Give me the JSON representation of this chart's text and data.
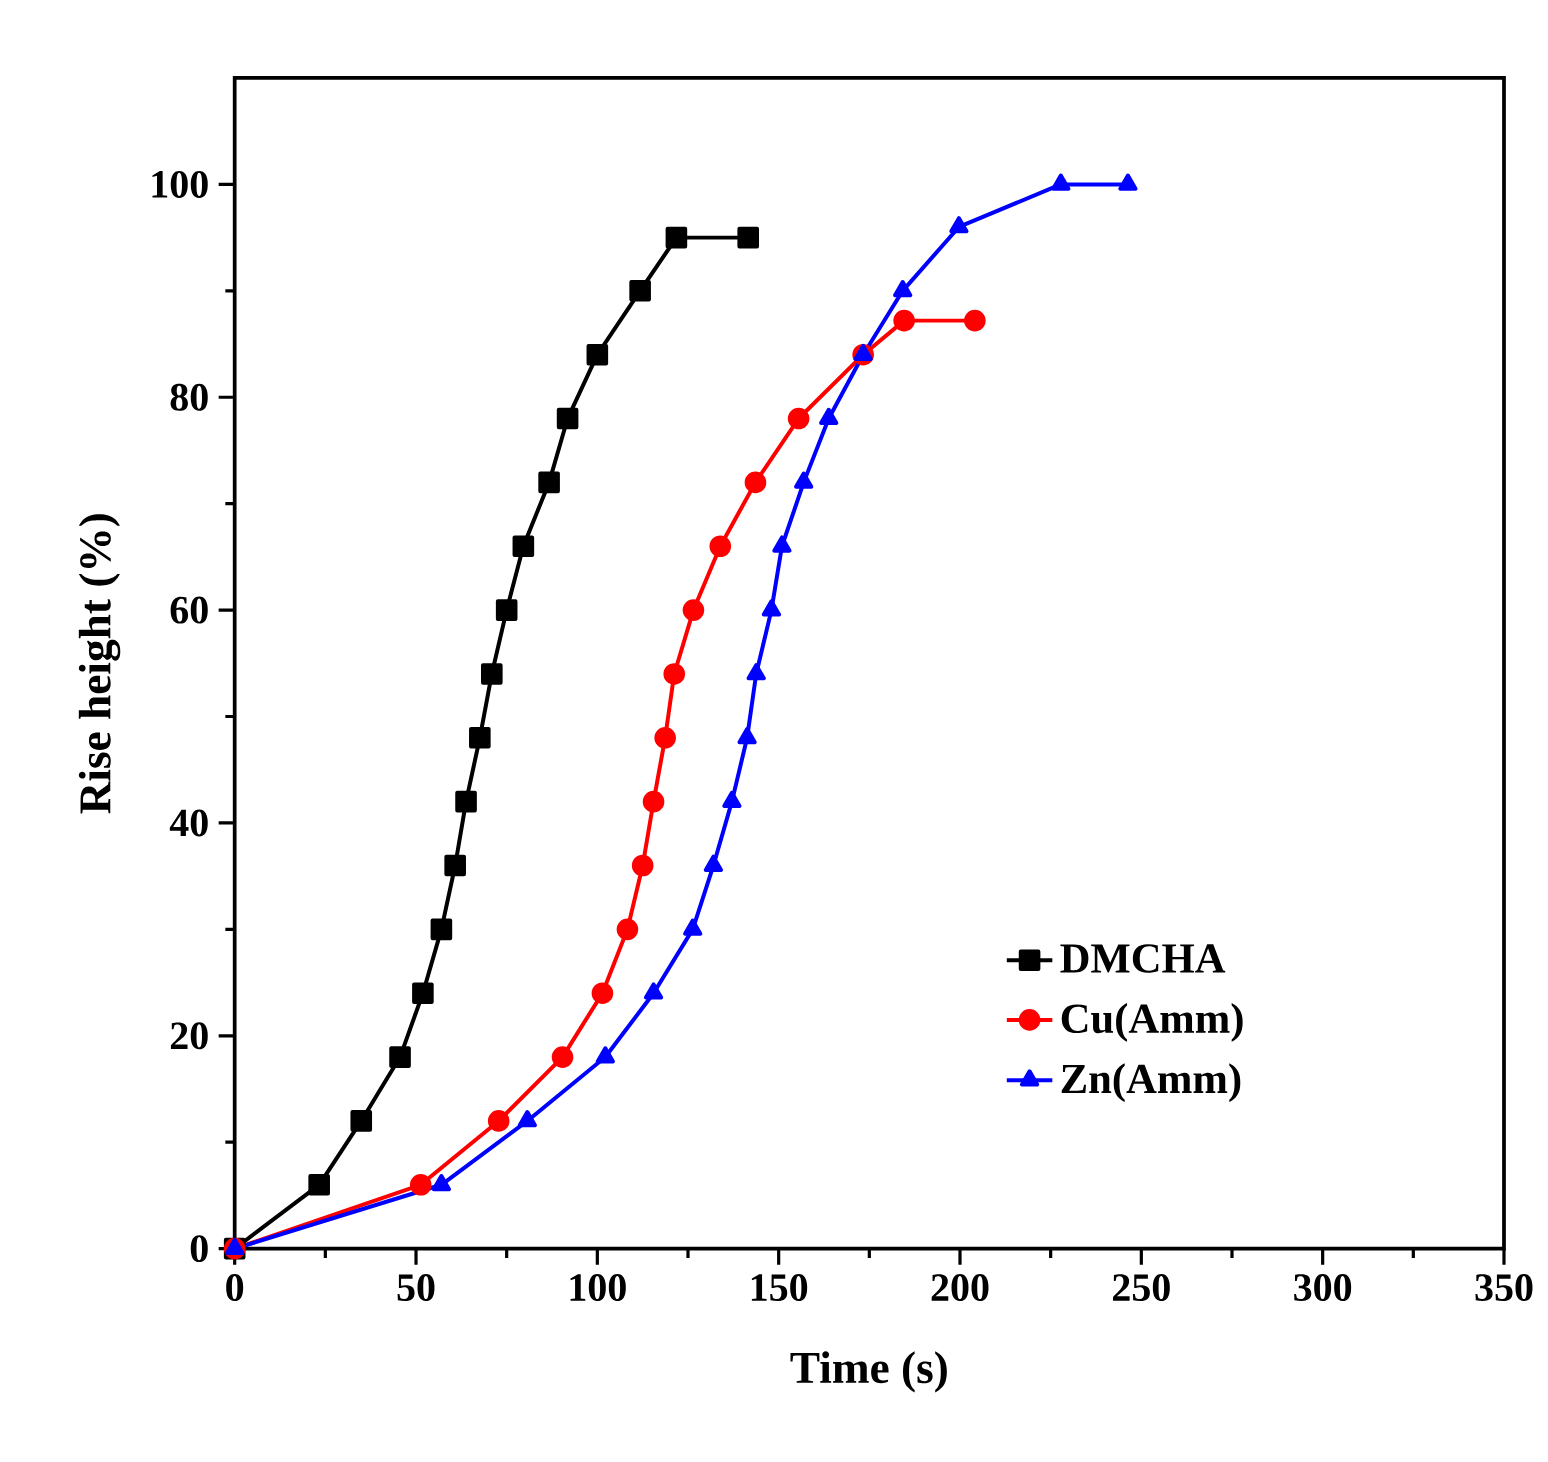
{
  "chart_data": {
    "type": "line",
    "xlabel": "Time (s)",
    "ylabel": "Rise height (%)",
    "xlim": [
      0,
      350
    ],
    "ylim": [
      0,
      110
    ],
    "xticks": [
      0,
      50,
      100,
      150,
      200,
      250,
      300,
      350
    ],
    "yticks": [
      0,
      20,
      40,
      60,
      80,
      100
    ],
    "grid": false,
    "legend": "bottom right",
    "line_style": "solid",
    "series": [
      {
        "name": "DMCHA",
        "color": "#000000",
        "marker": "square",
        "x": [
          0,
          23.3,
          34.9,
          45.6,
          51.9,
          57,
          60.8,
          63.8,
          67.6,
          70.9,
          75,
          79.6,
          86.7,
          91.8,
          100,
          111.8,
          121.8,
          141.6
        ],
        "values": [
          0,
          6,
          12,
          18,
          24,
          30,
          36,
          42,
          48,
          54,
          60,
          66,
          72,
          78,
          84,
          90,
          95,
          95
        ]
      },
      {
        "name": "Cu(Amm)",
        "color": "#ff0000",
        "marker": "circle",
        "x": [
          0,
          51.3,
          72.8,
          90.4,
          101.4,
          108.3,
          112.5,
          115.5,
          118.7,
          121.2,
          126.5,
          133.9,
          143.6,
          155.5,
          173.3,
          184.6,
          204.1
        ],
        "values": [
          0,
          6,
          12,
          18,
          24,
          30,
          36,
          42,
          48,
          54,
          60,
          66,
          72,
          78,
          84,
          87.2,
          87.2
        ]
      },
      {
        "name": "Zn(Amm)",
        "color": "#0000ff",
        "marker": "triangle",
        "x": [
          0,
          57,
          80.7,
          102.2,
          115.5,
          126.3,
          132,
          137.1,
          141.3,
          143.8,
          148,
          150.9,
          156.9,
          163.8,
          173.3,
          184.2,
          199.7,
          227.8,
          246.3
        ],
        "values": [
          0,
          6,
          12,
          18,
          24,
          30,
          36,
          42,
          48,
          54,
          60,
          66,
          72,
          78,
          84,
          90,
          96,
          100,
          100
        ]
      }
    ]
  }
}
